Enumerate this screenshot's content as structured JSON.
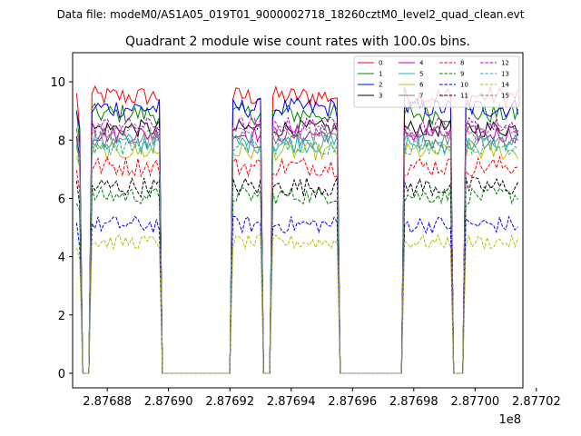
{
  "chart_data": {
    "type": "line",
    "suptitle": "Data file: modeM0/AS1A05_019T01_9000002718_18260cztM0_level2_quad_clean.evt",
    "title": "Quadrant 2 module wise count rates with 100.0s bins.",
    "xlabel": "",
    "ylabel": "",
    "x_offset_label": "1e8",
    "xlim": [
      287686870,
      287701560
    ],
    "ylim": [
      -0.5,
      11.0
    ],
    "x_ticks": [
      287688000,
      287690000,
      287692000,
      287694000,
      287696000,
      287698000,
      287700000,
      287702000
    ],
    "x_tick_labels": [
      "2.87688",
      "2.87690",
      "2.87692",
      "2.87694",
      "2.87696",
      "2.87698",
      "2.87700",
      "2.87702"
    ],
    "y_ticks": [
      0,
      2,
      4,
      6,
      8,
      10
    ],
    "y_tick_labels": [
      "0",
      "2",
      "4",
      "6",
      "8",
      "10"
    ],
    "grid": false,
    "legend_location": "upper-right",
    "legend_columns": 4,
    "time": {
      "start": 287687000,
      "bin_seconds": 100,
      "n_bins": 145
    },
    "active_segments": [
      {
        "start_bin": 1,
        "end_bin": 1,
        "level": 0.9
      },
      {
        "start_bin": 5,
        "end_bin": 27,
        "level": 1.0
      },
      {
        "start_bin": 51,
        "end_bin": 60,
        "level": 1.0
      },
      {
        "start_bin": 64,
        "end_bin": 85,
        "level": 1.0
      },
      {
        "start_bin": 107,
        "end_bin": 122,
        "level": 1.0
      },
      {
        "start_bin": 127,
        "end_bin": 144,
        "level": 1.0
      }
    ],
    "series": [
      {
        "name": "0",
        "color": "#ff0000",
        "dash": "solid",
        "base": 9.5,
        "noise": 0.35
      },
      {
        "name": "1",
        "color": "#008000",
        "dash": "solid",
        "base": 8.9,
        "noise": 0.35
      },
      {
        "name": "2",
        "color": "#0000ff",
        "dash": "solid",
        "base": 9.1,
        "noise": 0.35
      },
      {
        "name": "3",
        "color": "#000000",
        "dash": "solid",
        "base": 8.4,
        "noise": 0.3
      },
      {
        "name": "4",
        "color": "#bf00bf",
        "dash": "solid",
        "base": 8.2,
        "noise": 0.3
      },
      {
        "name": "5",
        "color": "#20b2aa",
        "dash": "solid",
        "base": 7.9,
        "noise": 0.35
      },
      {
        "name": "6",
        "color": "#bfbf00",
        "dash": "solid",
        "base": 7.6,
        "noise": 0.3
      },
      {
        "name": "7",
        "color": "#808080",
        "dash": "solid",
        "base": 8.0,
        "noise": 0.3
      },
      {
        "name": "8",
        "color": "#ff0000",
        "dash": "dashed",
        "base": 7.1,
        "noise": 0.35
      },
      {
        "name": "9",
        "color": "#008000",
        "dash": "dashed",
        "base": 6.1,
        "noise": 0.3
      },
      {
        "name": "10",
        "color": "#0000ff",
        "dash": "dashed",
        "base": 5.1,
        "noise": 0.3
      },
      {
        "name": "11",
        "color": "#000000",
        "dash": "dashed",
        "base": 6.4,
        "noise": 0.35
      },
      {
        "name": "12",
        "color": "#bf00bf",
        "dash": "dashed",
        "base": 8.5,
        "noise": 0.3
      },
      {
        "name": "13",
        "color": "#20b2aa",
        "dash": "dashed",
        "base": 7.8,
        "noise": 0.3
      },
      {
        "name": "14",
        "color": "#bfbf00",
        "dash": "dashed",
        "base": 4.5,
        "noise": 0.25
      },
      {
        "name": "15",
        "color": "#808080",
        "dash": "dashed",
        "base": 8.3,
        "noise": 0.3
      }
    ]
  }
}
